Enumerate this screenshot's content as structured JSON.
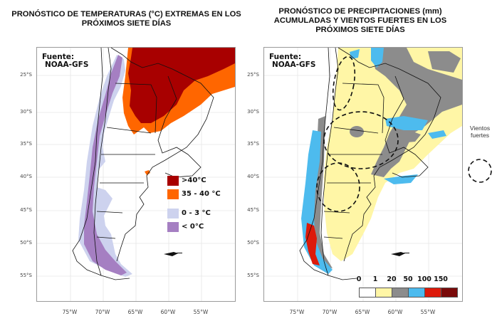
{
  "left_panel": {
    "title": "PRONÓSTICO DE TEMPERATURAS (°C) EXTREMAS EN LOS PRÓXIMOS SIETE DÍAS",
    "source_line1": "Fuente:",
    "source_line2": "NOAA-GFS",
    "legend": [
      {
        "label": ">40°C",
        "color": "#a80000"
      },
      {
        "label": "35 - 40 °C",
        "color": "#ff6600"
      },
      {
        "label": "0 - 3 °C",
        "color": "#cdd2ee"
      },
      {
        "label": "< 0°C",
        "color": "#a57fc2"
      }
    ]
  },
  "right_panel": {
    "title": "PRONÓSTICO DE PRECIPITACIONES (mm) ACUMULADAS Y VIENTOS FUERTES EN LOS PRÓXIMOS SIETE DÍAS",
    "source_line1": "Fuente:",
    "source_line2": "NOAA-GFS",
    "colorbar": {
      "ticks": [
        "0",
        "1",
        "20",
        "50",
        "100",
        "150"
      ],
      "colors": [
        "#ffffff",
        "#fff6a6",
        "#8c8c8c",
        "#4dbbee",
        "#dd1a0a",
        "#7a0a0a"
      ]
    },
    "wind_legend": "Vientos fuertes"
  },
  "axes": {
    "lat_labels": [
      "25°S",
      "30°S",
      "35°S",
      "40°S",
      "45°S",
      "50°S",
      "55°S"
    ],
    "lon_labels": [
      "75°W",
      "70°W",
      "65°W",
      "60°W",
      "55°W"
    ]
  }
}
